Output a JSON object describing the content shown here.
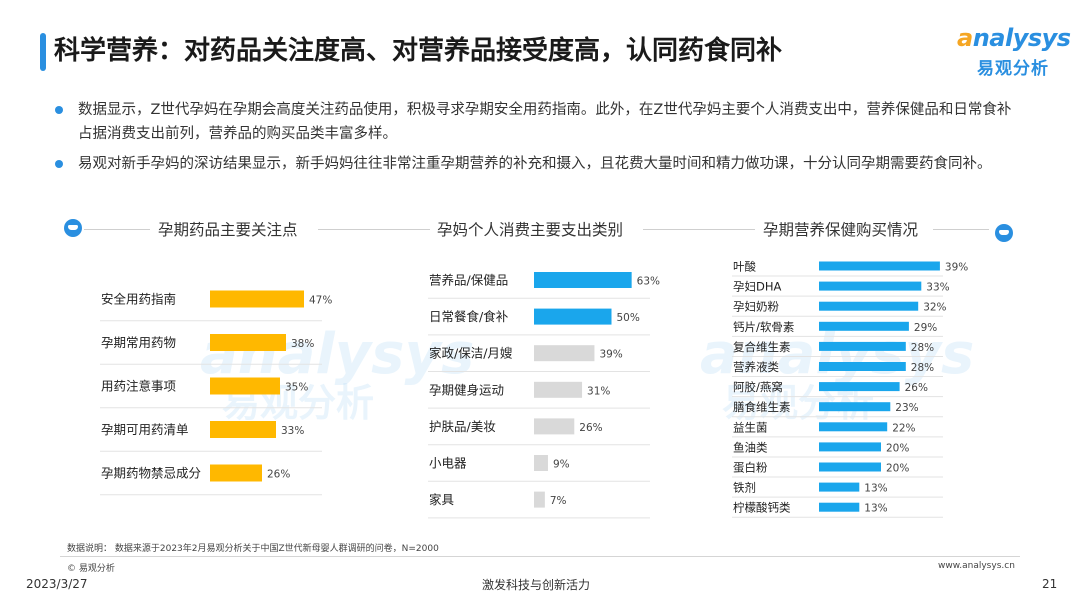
{
  "title": "科学营养：对药品关注度高、对营养品接受度高，认同药食同补",
  "logo": {
    "en_first": "a",
    "en_rest": "nalysys",
    "cn": "易观分析"
  },
  "bullets": [
    "数据显示，Z世代孕妈在孕期会高度关注药品使用，积极寻求孕期安全用药指南。此外，在Z世代孕妈主要个人消费支出中，营养保健品和日常食补占据消费支出前列，营养品的购买品类丰富多样。",
    "易观对新手孕妈的深访结果显示，新手妈妈往往非常注重孕期营养的补充和摄入，且花费大量时间和精力做功课，十分认同孕期需要药食同补。"
  ],
  "watermark": {
    "en": "analysys",
    "cn": "易观分析"
  },
  "footer": {
    "note": "数据说明：  数据来源于2023年2月易观分析关于中国Z世代新母婴人群调研的问卷，N=2000",
    "copyright": "© 易观分析",
    "website": "www.analysys.cn",
    "date": "2023/3/27",
    "slogan": "激发科技与创新活力",
    "page": "21"
  },
  "colors": {
    "orange": "#FFB800",
    "blue": "#1AA6EC",
    "gray": "#D9D9D9",
    "accent": "#2a8fe0"
  },
  "chart_data": [
    {
      "type": "bar",
      "orientation": "horizontal",
      "title": "孕期药品主要关注点",
      "categories": [
        "安全用药指南",
        "孕期常用药物",
        "用药注意事项",
        "孕期可用药清单",
        "孕期药物禁忌成分"
      ],
      "values": [
        47,
        38,
        35,
        33,
        26
      ],
      "unit": "%",
      "color": "#FFB800"
    },
    {
      "type": "bar",
      "orientation": "horizontal",
      "title": "孕妈个人消费主要支出类别",
      "categories": [
        "营养品/保健品",
        "日常餐食/食补",
        "家政/保洁/月嫂",
        "孕期健身运动",
        "护肤品/美妆",
        "小电器",
        "家具"
      ],
      "values": [
        63,
        50,
        39,
        31,
        26,
        9,
        7
      ],
      "unit": "%",
      "colors": [
        "#1AA6EC",
        "#1AA6EC",
        "#D9D9D9",
        "#D9D9D9",
        "#D9D9D9",
        "#D9D9D9",
        "#D9D9D9"
      ]
    },
    {
      "type": "bar",
      "orientation": "horizontal",
      "title": "孕期营养保健购买情况",
      "categories": [
        "叶酸",
        "孕妇DHA",
        "孕妇奶粉",
        "钙片/软骨素",
        "复合维生素",
        "营养液类",
        "阿胶/燕窝",
        "膳食维生素",
        "益生菌",
        "鱼油类",
        "蛋白粉",
        "铁剂",
        "柠檬酸钙类"
      ],
      "values": [
        39,
        33,
        32,
        29,
        28,
        28,
        26,
        23,
        22,
        20,
        20,
        13,
        13
      ],
      "unit": "%",
      "color": "#1AA6EC"
    }
  ]
}
